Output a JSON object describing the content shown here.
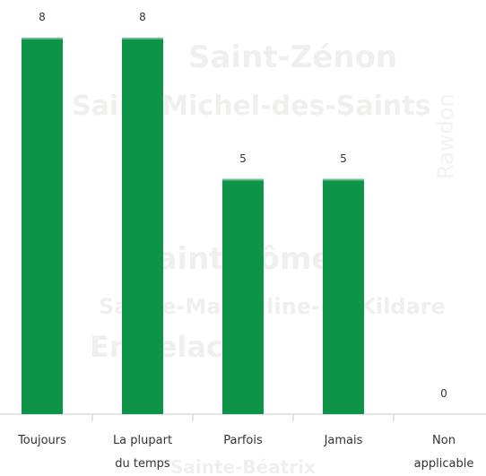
{
  "background_words": [
    "Saint-Zénon",
    "Saint-Michel-des-Saints",
    "Rawdon",
    "Saint-Côme",
    "Sainte-Marcelline-de-Kildare",
    "Entrelacs",
    "Sainte-Béatrix"
  ],
  "chart_data": {
    "type": "bar",
    "categories": [
      "Toujours",
      "La plupart du temps",
      "Parfois",
      "Jamais",
      "Non applicable"
    ],
    "values": [
      8,
      8,
      5,
      5,
      0
    ],
    "color": "#0e9448",
    "ylim": [
      0,
      8
    ]
  }
}
